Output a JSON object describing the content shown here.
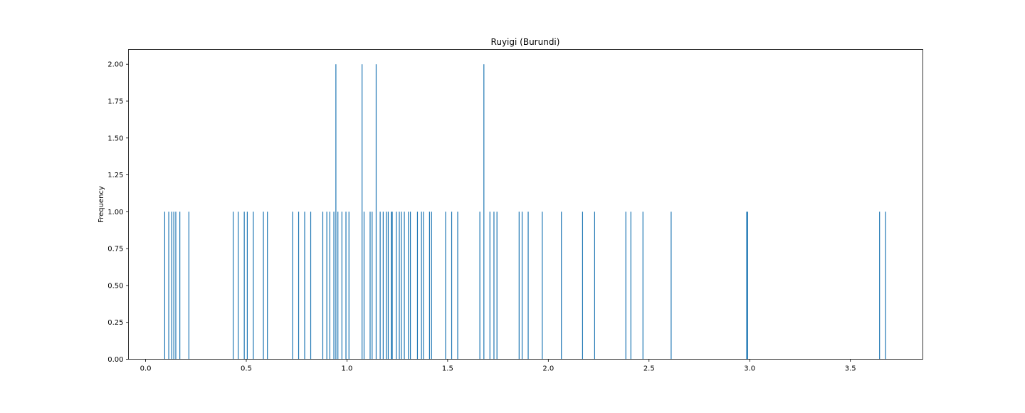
{
  "chart_data": {
    "type": "bar",
    "title": "Ruyigi (Burundi)",
    "xlabel": "",
    "ylabel": "Frequency",
    "xlim": [
      -0.085,
      3.86
    ],
    "ylim": [
      0,
      2.1
    ],
    "xticks": [
      0.0,
      0.5,
      1.0,
      1.5,
      2.0,
      2.5,
      3.0,
      3.5
    ],
    "xtick_labels": [
      "0.0",
      "0.5",
      "1.0",
      "1.5",
      "2.0",
      "2.5",
      "3.0",
      "3.5"
    ],
    "yticks": [
      0.0,
      0.25,
      0.5,
      0.75,
      1.0,
      1.25,
      1.5,
      1.75,
      2.0
    ],
    "ytick_labels": [
      "0.00",
      "0.25",
      "0.50",
      "0.75",
      "1.00",
      "1.25",
      "1.50",
      "1.75",
      "2.00"
    ],
    "bar_color": "#1f77b4",
    "grid": false,
    "legend": "none",
    "bins": [
      {
        "x": 0.095,
        "count": 1
      },
      {
        "x": 0.115,
        "count": 1
      },
      {
        "x": 0.13,
        "count": 1
      },
      {
        "x": 0.14,
        "count": 1
      },
      {
        "x": 0.15,
        "count": 1
      },
      {
        "x": 0.17,
        "count": 1
      },
      {
        "x": 0.215,
        "count": 1
      },
      {
        "x": 0.435,
        "count": 1
      },
      {
        "x": 0.46,
        "count": 1
      },
      {
        "x": 0.49,
        "count": 1
      },
      {
        "x": 0.505,
        "count": 1
      },
      {
        "x": 0.535,
        "count": 1
      },
      {
        "x": 0.585,
        "count": 1
      },
      {
        "x": 0.605,
        "count": 1
      },
      {
        "x": 0.73,
        "count": 1
      },
      {
        "x": 0.76,
        "count": 1
      },
      {
        "x": 0.79,
        "count": 1
      },
      {
        "x": 0.82,
        "count": 1
      },
      {
        "x": 0.88,
        "count": 1
      },
      {
        "x": 0.9,
        "count": 1
      },
      {
        "x": 0.915,
        "count": 1
      },
      {
        "x": 0.935,
        "count": 1
      },
      {
        "x": 0.945,
        "count": 2
      },
      {
        "x": 0.955,
        "count": 1
      },
      {
        "x": 0.975,
        "count": 1
      },
      {
        "x": 0.995,
        "count": 1
      },
      {
        "x": 1.01,
        "count": 1
      },
      {
        "x": 1.075,
        "count": 2
      },
      {
        "x": 1.085,
        "count": 1
      },
      {
        "x": 1.115,
        "count": 1
      },
      {
        "x": 1.125,
        "count": 1
      },
      {
        "x": 1.145,
        "count": 2
      },
      {
        "x": 1.165,
        "count": 1
      },
      {
        "x": 1.18,
        "count": 1
      },
      {
        "x": 1.195,
        "count": 1
      },
      {
        "x": 1.205,
        "count": 1
      },
      {
        "x": 1.22,
        "count": 1
      },
      {
        "x": 1.225,
        "count": 1
      },
      {
        "x": 1.245,
        "count": 1
      },
      {
        "x": 1.26,
        "count": 1
      },
      {
        "x": 1.27,
        "count": 1
      },
      {
        "x": 1.285,
        "count": 1
      },
      {
        "x": 1.305,
        "count": 1
      },
      {
        "x": 1.315,
        "count": 1
      },
      {
        "x": 1.35,
        "count": 1
      },
      {
        "x": 1.37,
        "count": 1
      },
      {
        "x": 1.38,
        "count": 1
      },
      {
        "x": 1.41,
        "count": 1
      },
      {
        "x": 1.42,
        "count": 1
      },
      {
        "x": 1.49,
        "count": 1
      },
      {
        "x": 1.52,
        "count": 1
      },
      {
        "x": 1.55,
        "count": 1
      },
      {
        "x": 1.66,
        "count": 1
      },
      {
        "x": 1.68,
        "count": 2
      },
      {
        "x": 1.71,
        "count": 1
      },
      {
        "x": 1.73,
        "count": 1
      },
      {
        "x": 1.745,
        "count": 1
      },
      {
        "x": 1.855,
        "count": 1
      },
      {
        "x": 1.87,
        "count": 1
      },
      {
        "x": 1.9,
        "count": 1
      },
      {
        "x": 1.97,
        "count": 1
      },
      {
        "x": 2.065,
        "count": 1
      },
      {
        "x": 2.17,
        "count": 1
      },
      {
        "x": 2.23,
        "count": 1
      },
      {
        "x": 2.385,
        "count": 1
      },
      {
        "x": 2.41,
        "count": 1
      },
      {
        "x": 2.47,
        "count": 1
      },
      {
        "x": 2.61,
        "count": 1
      },
      {
        "x": 2.985,
        "count": 1
      },
      {
        "x": 2.99,
        "count": 1
      },
      {
        "x": 3.645,
        "count": 1
      },
      {
        "x": 3.675,
        "count": 1
      }
    ]
  }
}
